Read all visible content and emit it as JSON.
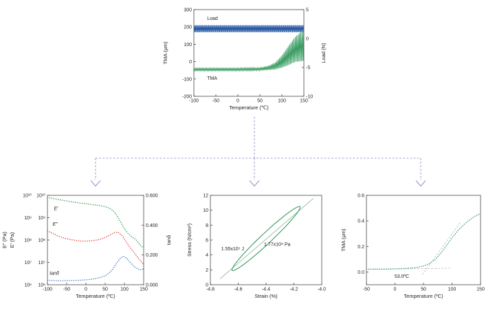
{
  "figure": {
    "background": "#ffffff",
    "arrow_color": "#9898d0"
  },
  "chart_data": [
    {
      "name": "tma-load-vs-temperature",
      "type": "line",
      "grid": false,
      "axes": {
        "x": {
          "label": "Temperature (℃)",
          "lim": [
            -100,
            150
          ],
          "ticks": [
            {
              "v": -100,
              "t": "-100"
            },
            {
              "v": -50,
              "t": "-50"
            },
            {
              "v": 0,
              "t": "0"
            },
            {
              "v": 50,
              "t": "50"
            },
            {
              "v": 100,
              "t": "100"
            },
            {
              "v": 150,
              "t": "150"
            }
          ]
        },
        "left": {
          "label": "TMA (μm)",
          "lim": [
            -200,
            300
          ],
          "scale": "linear",
          "ticks": [
            {
              "v": -200,
              "t": "-200"
            },
            {
              "v": -100,
              "t": "-100"
            },
            {
              "v": 0,
              "t": "0"
            },
            {
              "v": 100,
              "t": "100"
            },
            {
              "v": 200,
              "t": "200"
            },
            {
              "v": 300,
              "t": "300"
            }
          ]
        },
        "right": {
          "label": "Load (N)",
          "lim": [
            -10,
            5
          ],
          "scale": "linear",
          "ticks": [
            {
              "v": -10,
              "t": "-10"
            },
            {
              "v": -5,
              "t": "-5"
            },
            {
              "v": 0,
              "t": "0"
            },
            {
              "v": 5,
              "t": "5"
            }
          ]
        }
      },
      "series": [
        {
          "name": "Load",
          "axis": "right",
          "kind": "zigzag",
          "color": "#3a69b0",
          "step": 1.2,
          "center": [
            [
              -100,
              1.7
            ],
            [
              150,
              1.7
            ]
          ],
          "amp": [
            [
              -100,
              0.6
            ],
            [
              150,
              0.6
            ]
          ],
          "centerline": true,
          "color2": "#27508f"
        },
        {
          "name": "TMA",
          "axis": "left",
          "kind": "zigzag",
          "color": "#369b5f",
          "step": 1.6,
          "center": [
            [
              -100,
              -45
            ],
            [
              0,
              -45
            ],
            [
              50,
              -43
            ],
            [
              70,
              -36
            ],
            [
              85,
              -25
            ],
            [
              100,
              0
            ],
            [
              115,
              35
            ],
            [
              130,
              70
            ],
            [
              150,
              95
            ]
          ],
          "amp": [
            [
              -100,
              7
            ],
            [
              0,
              7
            ],
            [
              50,
              8
            ],
            [
              70,
              12
            ],
            [
              85,
              20
            ],
            [
              100,
              35
            ],
            [
              115,
              55
            ],
            [
              130,
              72
            ],
            [
              150,
              90
            ]
          ]
        }
      ],
      "labels": [
        {
          "text": "Load",
          "x": -70,
          "y": 3.2,
          "axis": "right",
          "anchor": "start"
        },
        {
          "text": "TMA",
          "x": -70,
          "y": -105,
          "axis": "left",
          "anchor": "start"
        }
      ]
    },
    {
      "name": "dma-moduli-vs-temperature",
      "type": "line",
      "grid": false,
      "axes": {
        "x": {
          "label": "Temperature (ºC)",
          "lim": [
            -100,
            150
          ],
          "ticks": [
            {
              "v": -100,
              "t": "-100"
            },
            {
              "v": -50,
              "t": "-50"
            },
            {
              "v": 0,
              "t": "0"
            },
            {
              "v": 50,
              "t": "50"
            },
            {
              "v": 100,
              "t": "100"
            },
            {
              "v": 150,
              "t": "150"
            }
          ]
        },
        "left": {
          "labels": [
            "E″ (Pa)",
            "E′ (Pa)"
          ],
          "lim": [
            1000000.0,
            10000000000.0
          ],
          "scale": "log",
          "dual": true,
          "ticks": [
            {
              "v": 1000000.0,
              "t": "10⁶"
            },
            {
              "v": 10000000.0,
              "t": "10⁷"
            },
            {
              "v": 100000000.0,
              "t": "10⁸"
            },
            {
              "v": 1000000000.0,
              "t": "10⁹"
            },
            {
              "v": 10000000000.0,
              "t": "10¹⁰"
            }
          ]
        },
        "right": {
          "label": "tanδ",
          "lim": [
            0,
            0.6
          ],
          "scale": "linear",
          "ticks": [
            {
              "v": 0,
              "t": "0.000"
            },
            {
              "v": 0.2,
              "t": "0.200"
            },
            {
              "v": 0.4,
              "t": "0.400"
            },
            {
              "v": 0.6,
              "t": "0.600"
            }
          ]
        }
      },
      "series": [
        {
          "name": "E-prime",
          "axis": "left",
          "kind": "line",
          "dotted": true,
          "color": "#3f9e5e",
          "pts": [
            [
              -100,
              8000000000.0
            ],
            [
              -85,
              7200000000.0
            ],
            [
              -70,
              6400000000.0
            ],
            [
              -55,
              5800000000.0
            ],
            [
              -40,
              5200000000.0
            ],
            [
              -25,
              4800000000.0
            ],
            [
              -10,
              4400000000.0
            ],
            [
              5,
              4100000000.0
            ],
            [
              20,
              3800000000.0
            ],
            [
              35,
              3500000000.0
            ],
            [
              50,
              3100000000.0
            ],
            [
              60,
              2700000000.0
            ],
            [
              70,
              2100000000.0
            ],
            [
              80,
              1300000000.0
            ],
            [
              90,
              650000000.0
            ],
            [
              100,
              320000000.0
            ],
            [
              110,
              190000000.0
            ],
            [
              120,
              135000000.0
            ],
            [
              130,
              105000000.0
            ],
            [
              140,
              60000000.0
            ],
            [
              150,
              45000000.0
            ]
          ]
        },
        {
          "name": "E-double-prime",
          "axis": "left",
          "kind": "line",
          "dotted": true,
          "color": "#e0453a",
          "pts": [
            [
              -100,
              260000000.0
            ],
            [
              -85,
              190000000.0
            ],
            [
              -70,
              145000000.0
            ],
            [
              -55,
              120000000.0
            ],
            [
              -40,
              105000000.0
            ],
            [
              -25,
              95000000.0
            ],
            [
              -10,
              90000000.0
            ],
            [
              5,
              90000000.0
            ],
            [
              20,
              95000000.0
            ],
            [
              35,
              105000000.0
            ],
            [
              50,
              130000000.0
            ],
            [
              60,
              160000000.0
            ],
            [
              70,
              200000000.0
            ],
            [
              78,
              225000000.0
            ],
            [
              86,
              210000000.0
            ],
            [
              95,
              150000000.0
            ],
            [
              105,
              80000000.0
            ],
            [
              115,
              45000000.0
            ],
            [
              125,
              28000000.0
            ],
            [
              135,
              16000000.0
            ],
            [
              150,
              8000000.0
            ]
          ]
        },
        {
          "name": "tan-delta",
          "axis": "right",
          "kind": "line",
          "dotted": true,
          "color": "#4a7bc4",
          "pts": [
            [
              -100,
              0.03
            ],
            [
              -85,
              0.028
            ],
            [
              -70,
              0.027
            ],
            [
              -55,
              0.027
            ],
            [
              -40,
              0.028
            ],
            [
              -25,
              0.029
            ],
            [
              -10,
              0.031
            ],
            [
              5,
              0.034
            ],
            [
              20,
              0.039
            ],
            [
              35,
              0.047
            ],
            [
              50,
              0.06
            ],
            [
              60,
              0.078
            ],
            [
              70,
              0.105
            ],
            [
              80,
              0.145
            ],
            [
              90,
              0.18
            ],
            [
              97,
              0.19
            ],
            [
              105,
              0.18
            ],
            [
              115,
              0.15
            ],
            [
              125,
              0.122
            ],
            [
              135,
              0.105
            ],
            [
              143,
              0.1
            ],
            [
              150,
              0.108
            ]
          ]
        }
      ],
      "labels": [
        {
          "text": "E′",
          "x": -78,
          "y": 2200000000.0,
          "axis": "left",
          "italic": true
        },
        {
          "text": "E″",
          "x": -80,
          "y": 450000000.0,
          "axis": "left",
          "italic": true
        },
        {
          "text": "tanδ",
          "x": -82,
          "y": 0.068,
          "axis": "right",
          "italic": true
        }
      ]
    },
    {
      "name": "stress-strain-hysteresis-loop",
      "type": "line",
      "grid": false,
      "axes": {
        "x": {
          "label": "Strain (%)",
          "lim": [
            -4.8,
            -4.0
          ],
          "ticks": [
            {
              "v": -4.8,
              "t": "-4.8"
            },
            {
              "v": -4.6,
              "t": "-4.6"
            },
            {
              "v": -4.4,
              "t": "-4.4"
            },
            {
              "v": -4.2,
              "t": "-4.2"
            },
            {
              "v": -4.0,
              "t": "-4.0"
            }
          ]
        },
        "left": {
          "label": "Stress (N/cm²)",
          "lim": [
            0,
            12
          ],
          "scale": "linear",
          "ticks": [
            {
              "v": 0,
              "t": "0"
            },
            {
              "v": 2,
              "t": "2"
            },
            {
              "v": 4,
              "t": "4"
            },
            {
              "v": 6,
              "t": "6"
            },
            {
              "v": 8,
              "t": "8"
            },
            {
              "v": 10,
              "t": "10"
            },
            {
              "v": 12,
              "t": "12"
            }
          ]
        }
      },
      "series": [
        {
          "name": "modulus-line",
          "axis": "left",
          "kind": "line",
          "color": "#7fae8e",
          "width": 0.7,
          "pts": [
            [
              -4.73,
              0.8
            ],
            [
              -4.06,
              11.6
            ]
          ]
        },
        {
          "name": "hysteresis-loop",
          "axis": "left",
          "kind": "ellipse",
          "color": "#369b5f",
          "width": 1.1,
          "ellipse": {
            "cx": -4.4,
            "cy": 6.2,
            "rx": 0.245,
            "rise": 4.2,
            "half": 0.95
          }
        }
      ],
      "labels": [
        {
          "text": "1.55x10⁵ J",
          "x": -4.64,
          "y": 4.6,
          "axis": "left"
        },
        {
          "text": "1.77x10⁹ Pa",
          "x": -4.32,
          "y": 5.2,
          "axis": "left"
        }
      ]
    },
    {
      "name": "tma-displacement-vs-temperature",
      "type": "line",
      "grid": false,
      "axes": {
        "x": {
          "label": "Temperature (ºC)",
          "lim": [
            -50,
            150
          ],
          "ticks": [
            {
              "v": -50,
              "t": "-50"
            },
            {
              "v": 0,
              "t": "0"
            },
            {
              "v": 50,
              "t": "50"
            },
            {
              "v": 100,
              "t": "100"
            },
            {
              "v": 150,
              "t": "150"
            }
          ]
        },
        "left": {
          "label": "TMA (μm)",
          "lim": [
            -0.1,
            0.6
          ],
          "scale": "linear",
          "ticks": [
            {
              "v": 0,
              "t": "0.0"
            },
            {
              "v": 0.2,
              "t": "0.2"
            },
            {
              "v": 0.4,
              "t": "0.4"
            },
            {
              "v": 0.6,
              "t": "0.6"
            }
          ]
        }
      },
      "series": [
        {
          "name": "baseline-tangent",
          "axis": "left",
          "kind": "line",
          "color": "#b0b0b0",
          "width": 0.7,
          "dash": "3 2",
          "pts": [
            [
              -45,
              0.02
            ],
            [
              100,
              0.03
            ]
          ]
        },
        {
          "name": "rise-tangent",
          "axis": "left",
          "kind": "line",
          "color": "#b0b0b0",
          "width": 0.7,
          "dash": "3 2",
          "pts": [
            [
              48,
              -0.02
            ],
            [
              115,
              0.39
            ]
          ]
        },
        {
          "name": "TMA",
          "axis": "left",
          "kind": "line",
          "dotted": true,
          "color": "#369b5f",
          "pts": [
            [
              -50,
              0.022
            ],
            [
              -35,
              0.022
            ],
            [
              -20,
              0.022
            ],
            [
              -5,
              0.024
            ],
            [
              10,
              0.026
            ],
            [
              25,
              0.03
            ],
            [
              40,
              0.037
            ],
            [
              50,
              0.047
            ],
            [
              60,
              0.065
            ],
            [
              70,
              0.095
            ],
            [
              80,
              0.145
            ],
            [
              90,
              0.205
            ],
            [
              100,
              0.268
            ],
            [
              110,
              0.322
            ],
            [
              120,
              0.368
            ],
            [
              130,
              0.405
            ],
            [
              140,
              0.435
            ],
            [
              150,
              0.458
            ]
          ]
        }
      ],
      "labels": [
        {
          "text": "53.0ºC",
          "x": 12,
          "y": -0.045,
          "axis": "left"
        }
      ]
    }
  ]
}
